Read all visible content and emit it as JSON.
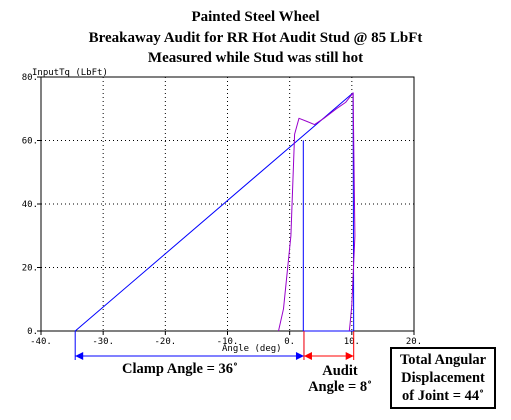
{
  "titles": {
    "line1": "Painted Steel Wheel",
    "line2": "Breakaway Audit for RR Hot Audit Stud @ 85 LbFt",
    "line3": "Measured while Stud was still hot"
  },
  "colors": {
    "blue_series": "#0000ff",
    "purple_series": "#9900cc",
    "red_series": "#ff0000",
    "grid": "#000000"
  },
  "annotations": {
    "clamp_angle": "Clamp Angle = 36˚",
    "audit_line1": "Audit",
    "audit_line2": "Angle = 8˚",
    "total_line1": "Total Angular",
    "total_line2": "Displacement",
    "total_line3": "of Joint = 44˚"
  },
  "chart_data": {
    "type": "line",
    "ylabel": "InputTq (LbFt)",
    "xlabel": "Angle (deg)",
    "xlim": [
      -40,
      20
    ],
    "ylim": [
      0,
      80
    ],
    "xticks": [
      -40,
      -30,
      -20,
      -10,
      0,
      10,
      20
    ],
    "xtick_labels": [
      "-40.",
      "-30.",
      "-20.",
      "-10.",
      "0.",
      "10.",
      "20."
    ],
    "yticks": [
      0,
      20,
      40,
      60,
      80
    ],
    "ytick_labels": [
      "0.",
      "20.",
      "40.",
      "60.",
      "80."
    ],
    "grid": true,
    "series": [
      {
        "color": "#0000ff",
        "x": [
          -34.5,
          10.2,
          10.3,
          2.2,
          2.2
        ],
        "y": [
          0,
          75,
          0,
          0,
          60
        ]
      },
      {
        "color": "#9900cc",
        "x": [
          -1.8,
          -1.0,
          0.2,
          0.8,
          1.5,
          2.8,
          4.0,
          5.5,
          7.5,
          9.0,
          10.2,
          10.5,
          10.0,
          9.7,
          9.6
        ],
        "y": [
          0,
          7,
          30,
          62,
          67,
          66,
          65,
          67,
          70,
          72,
          75,
          30,
          8,
          2,
          0
        ]
      }
    ],
    "dimension_arrows": [
      {
        "color": "#0000ff",
        "from": -34.5,
        "to": 2.3
      },
      {
        "color": "#ff0000",
        "from": 2.3,
        "to": 10.3
      }
    ]
  }
}
